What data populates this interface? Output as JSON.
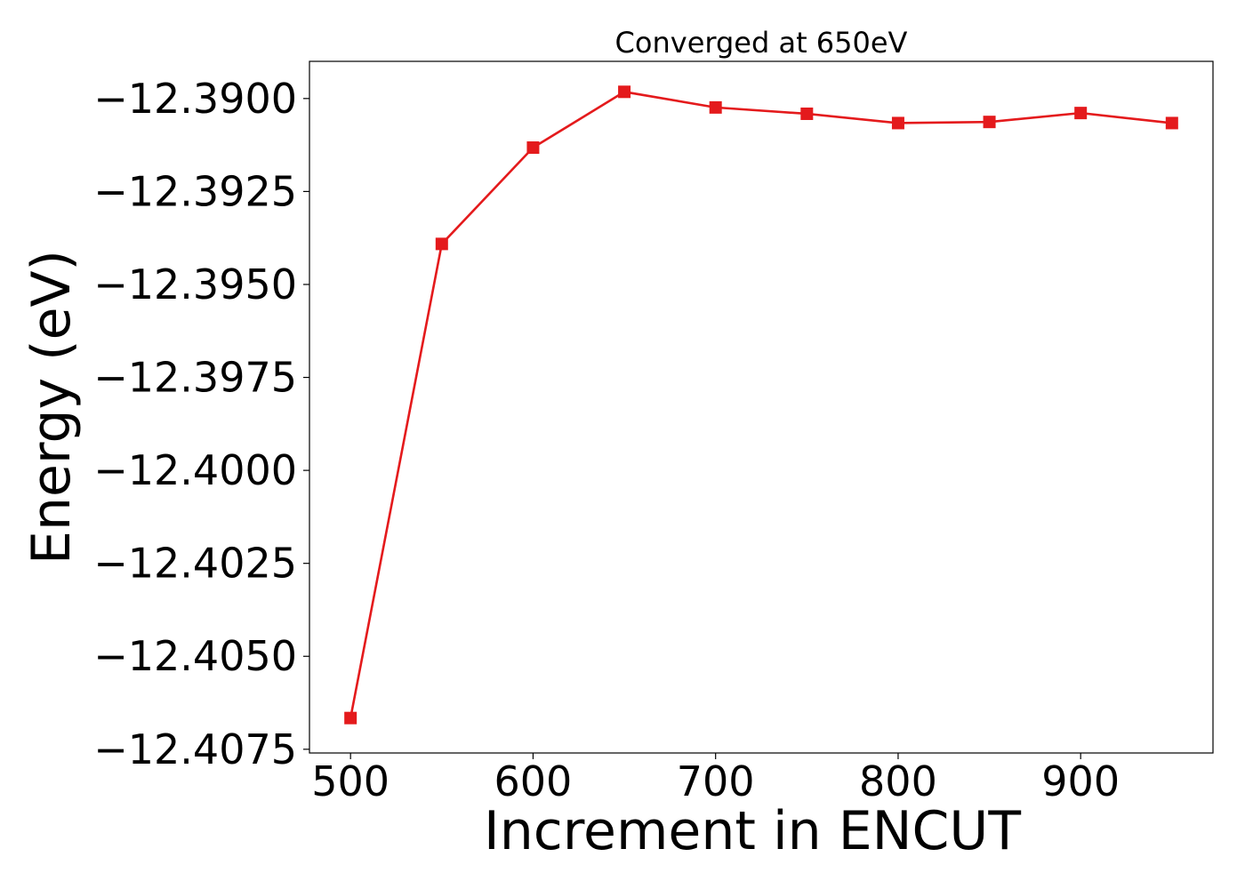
{
  "chart_data": {
    "type": "line",
    "title": "Converged at 650eV",
    "xlabel": "Increment in ENCUT",
    "ylabel": "Energy (eV)",
    "xlim": [
      477.5,
      972.5
    ],
    "ylim": [
      -12.4076,
      -12.389
    ],
    "x_ticks": [
      500,
      600,
      700,
      800,
      900
    ],
    "x_tick_labels": [
      "500",
      "600",
      "700",
      "800",
      "900"
    ],
    "y_ticks": [
      -12.39,
      -12.3925,
      -12.395,
      -12.3975,
      -12.4,
      -12.4025,
      -12.405,
      -12.4075
    ],
    "y_tick_labels": [
      "−12.3900",
      "−12.3925",
      "−12.3950",
      "−12.3975",
      "−12.4000",
      "−12.4025",
      "−12.4050",
      "−12.4075"
    ],
    "grid": false,
    "series": [
      {
        "color": "#e41a1c",
        "marker": "square",
        "x": [
          500,
          550,
          600,
          650,
          700,
          750,
          800,
          850,
          900,
          950
        ],
        "y": [
          -12.40666,
          -12.39391,
          -12.39132,
          -12.38982,
          -12.39024,
          -12.39041,
          -12.39066,
          -12.39063,
          -12.39039,
          -12.39066
        ]
      }
    ]
  }
}
